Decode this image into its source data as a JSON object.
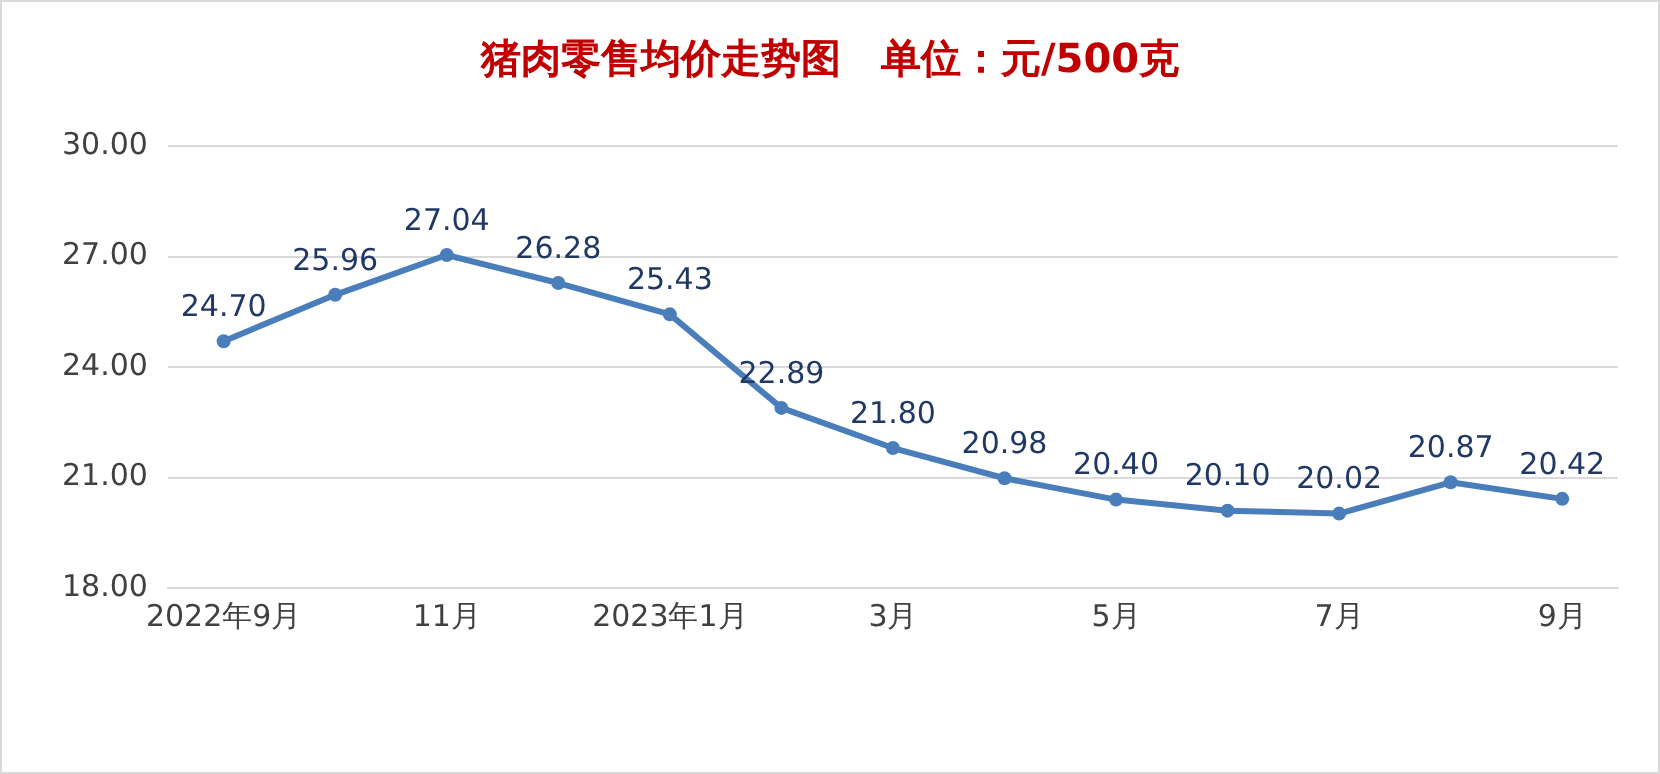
{
  "chart_data": {
    "type": "line",
    "title": "猪肉零售均价走势图　单位：元/500克",
    "categories": [
      "2022年9月",
      null,
      "11月",
      null,
      "2023年1月",
      null,
      "3月",
      null,
      "5月",
      null,
      "7月",
      null,
      "9月"
    ],
    "series": [
      {
        "color": "#4a7ebb",
        "values": [
          24.7,
          25.96,
          27.04,
          26.28,
          25.43,
          22.89,
          21.8,
          20.98,
          20.4,
          20.1,
          20.02,
          20.87,
          20.42
        ],
        "value_labels": [
          "24.70",
          "25.96",
          "27.04",
          "26.28",
          "25.43",
          "22.89",
          "21.80",
          "20.98",
          "20.40",
          "20.10",
          "20.02",
          "20.87",
          "20.42"
        ]
      }
    ],
    "ylim": [
      18,
      30
    ],
    "yticks": [
      {
        "value": 18,
        "label": "18.00"
      },
      {
        "value": 21,
        "label": "21.00"
      },
      {
        "value": 24,
        "label": "24.00"
      },
      {
        "value": 27,
        "label": "27.00"
      },
      {
        "value": 30,
        "label": "30.00"
      }
    ],
    "grid": "y",
    "legend": false,
    "marker": "circle",
    "line_style": "solid"
  }
}
